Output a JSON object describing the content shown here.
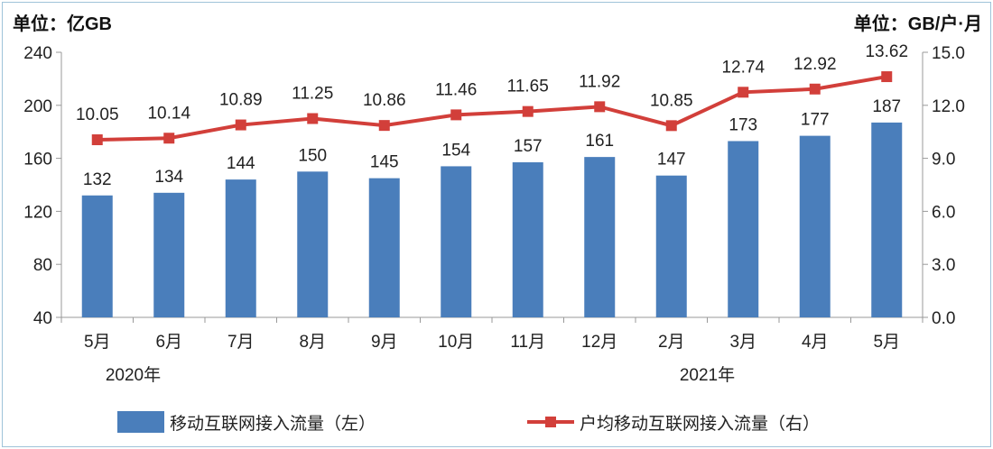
{
  "chart_data": {
    "type": "bar+line",
    "left_unit": "单位：亿GB",
    "right_unit": "单位：GB/户·月",
    "categories": [
      "5月",
      "6月",
      "7月",
      "8月",
      "9月",
      "10月",
      "11月",
      "12月",
      "2月",
      "3月",
      "4月",
      "5月"
    ],
    "year_labels": [
      {
        "label": "2020年",
        "at_category_index": 0.5
      },
      {
        "label": "2021年",
        "at_category_index": 8.5
      }
    ],
    "left_axis": {
      "min": 40,
      "max": 240,
      "ticks": [
        "40",
        "80",
        "120",
        "160",
        "200",
        "240"
      ]
    },
    "right_axis": {
      "min": 0,
      "max": 15,
      "ticks": [
        "0.0",
        "3.0",
        "6.0",
        "9.0",
        "12.0",
        "15.0"
      ]
    },
    "series": [
      {
        "name": "移动互联网接入流量（左）",
        "type": "bar",
        "axis": "left",
        "color": "#4a7ebb",
        "values": [
          132,
          134,
          144,
          150,
          145,
          154,
          157,
          161,
          147,
          173,
          177,
          187
        ]
      },
      {
        "name": "户均移动互联网接入流量（右）",
        "type": "line",
        "axis": "right",
        "color": "#d23f3a",
        "values": [
          10.05,
          10.14,
          10.89,
          11.25,
          10.86,
          11.46,
          11.65,
          11.92,
          10.85,
          12.74,
          12.92,
          13.62
        ],
        "labels": [
          "10.05",
          "10.14",
          "10.89",
          "11.25",
          "10.86",
          "11.46",
          "11.65",
          "11.92",
          "10.85",
          "12.74",
          "12.92",
          "13.62"
        ]
      }
    ],
    "grid": false,
    "legend": "bottom"
  }
}
